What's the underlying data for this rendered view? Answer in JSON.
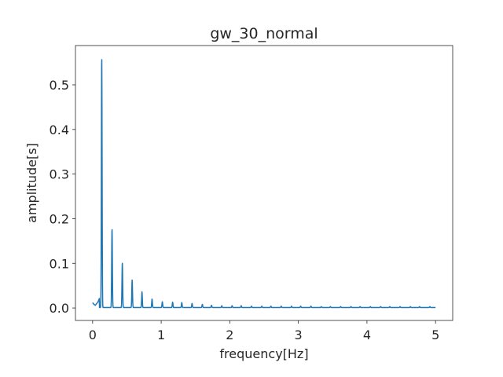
{
  "chart_data": {
    "type": "line",
    "title": "gw_30_normal",
    "xlabel": "frequency[Hz]",
    "ylabel": "amplitude[s]",
    "xlim": [
      -0.25,
      5.25
    ],
    "ylim": [
      -0.028,
      0.588
    ],
    "xticks": [
      0,
      1,
      2,
      3,
      4,
      5
    ],
    "xtick_labels": [
      "0",
      "1",
      "2",
      "3",
      "4",
      "5"
    ],
    "yticks": [
      0.0,
      0.1,
      0.2,
      0.3,
      0.4,
      0.5
    ],
    "ytick_labels": [
      "0.0",
      "0.1",
      "0.2",
      "0.3",
      "0.4",
      "0.5"
    ],
    "grid": false,
    "line_color": "#1f77b4",
    "series": [
      {
        "fundamental_hz": 0.1333,
        "peaks": [
          {
            "x": 0.1333,
            "y": 0.561
          },
          {
            "x": 0.2833,
            "y": 0.176
          },
          {
            "x": 0.4333,
            "y": 0.1
          },
          {
            "x": 0.5767,
            "y": 0.062
          },
          {
            "x": 0.72,
            "y": 0.035
          },
          {
            "x": 0.8667,
            "y": 0.019
          },
          {
            "x": 1.0167,
            "y": 0.013
          },
          {
            "x": 1.1667,
            "y": 0.012
          },
          {
            "x": 1.3,
            "y": 0.011
          },
          {
            "x": 1.45,
            "y": 0.009
          },
          {
            "x": 1.6,
            "y": 0.007
          },
          {
            "x": 1.7333,
            "y": 0.005
          },
          {
            "x": 1.8833,
            "y": 0.004
          },
          {
            "x": 2.0333,
            "y": 0.004
          },
          {
            "x": 2.1667,
            "y": 0.004
          },
          {
            "x": 2.3167,
            "y": 0.003
          },
          {
            "x": 2.4667,
            "y": 0.003
          },
          {
            "x": 2.6,
            "y": 0.003
          },
          {
            "x": 2.75,
            "y": 0.003
          },
          {
            "x": 2.9,
            "y": 0.003
          },
          {
            "x": 3.0333,
            "y": 0.003
          },
          {
            "x": 3.1833,
            "y": 0.003
          },
          {
            "x": 3.3333,
            "y": 0.002
          },
          {
            "x": 3.4667,
            "y": 0.002
          },
          {
            "x": 3.6167,
            "y": 0.002
          },
          {
            "x": 3.7667,
            "y": 0.002
          },
          {
            "x": 3.9,
            "y": 0.002
          },
          {
            "x": 4.05,
            "y": 0.002
          },
          {
            "x": 4.2,
            "y": 0.002
          },
          {
            "x": 4.3333,
            "y": 0.002
          },
          {
            "x": 4.4833,
            "y": 0.002
          },
          {
            "x": 4.6333,
            "y": 0.002
          },
          {
            "x": 4.7667,
            "y": 0.002
          },
          {
            "x": 4.9167,
            "y": 0.002
          }
        ],
        "low_freq": [
          {
            "x": 0.0,
            "y": 0.012
          },
          {
            "x": 0.02,
            "y": 0.008
          },
          {
            "x": 0.04,
            "y": 0.006
          },
          {
            "x": 0.06,
            "y": 0.01
          },
          {
            "x": 0.08,
            "y": 0.014
          },
          {
            "x": 0.1,
            "y": 0.022
          }
        ],
        "x_end": 5.0,
        "baseline": 0.001
      }
    ]
  }
}
